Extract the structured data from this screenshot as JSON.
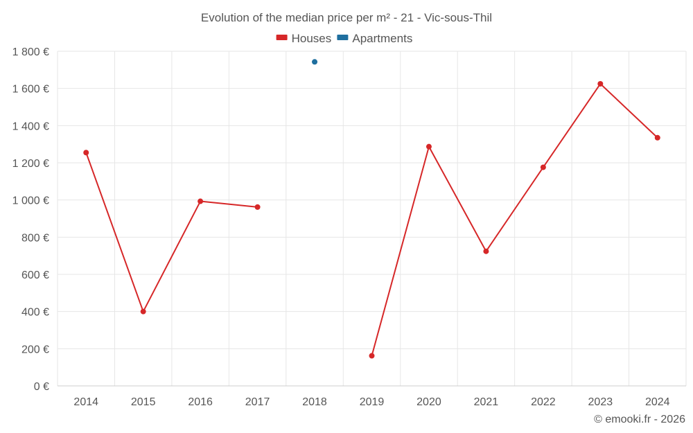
{
  "chart_data": {
    "type": "line",
    "title": "Evolution of the median price per m² - 21 - Vic-sous-Thil",
    "categories": [
      "2014",
      "2015",
      "2016",
      "2017",
      "2018",
      "2019",
      "2020",
      "2021",
      "2022",
      "2023",
      "2024"
    ],
    "series": [
      {
        "name": "Houses",
        "color": "#d62728",
        "values": [
          1255,
          400,
          993,
          962,
          null,
          162,
          1287,
          724,
          1176,
          1625,
          1335
        ]
      },
      {
        "name": "Apartments",
        "color": "#1f6f9f",
        "values": [
          null,
          null,
          null,
          null,
          1743,
          null,
          null,
          null,
          null,
          null,
          null
        ]
      }
    ],
    "ylim": [
      0,
      1800
    ],
    "yticks": [
      0,
      200,
      400,
      600,
      800,
      1000,
      1200,
      1400,
      1600,
      1800
    ],
    "ytick_labels": [
      "0 €",
      "200 €",
      "400 €",
      "600 €",
      "800 €",
      "1 000 €",
      "1 200 €",
      "1 400 €",
      "1 600 €",
      "1 800 €"
    ],
    "xlabel": "",
    "ylabel": "",
    "grid": true,
    "legend_position": "top-center"
  },
  "credit": "© emooki.fr - 2026"
}
